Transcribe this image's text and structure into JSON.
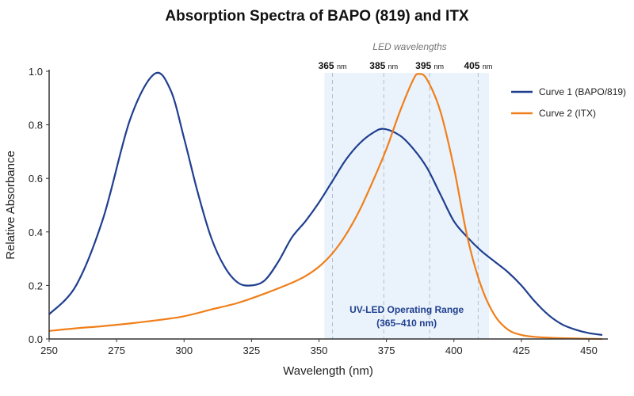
{
  "chart_data": {
    "type": "line",
    "title": "Absorption Spectra of BAPO (819) and ITX",
    "xlabel": "Wavelength (nm)",
    "ylabel": "Relative Absorbance",
    "xlim": [
      250,
      455
    ],
    "ylim": [
      0,
      1.0
    ],
    "xticks": [
      250,
      275,
      300,
      325,
      350,
      375,
      400,
      425,
      450
    ],
    "yticks": [
      0.0,
      0.2,
      0.4,
      0.6,
      0.8,
      1.0
    ],
    "grid": false,
    "legend": "top-right",
    "series": [
      {
        "name": "Curve 1 (BAPO/819)",
        "color": "#1f3f8f",
        "x": [
          250,
          260,
          270,
          280,
          289,
          295,
          300,
          305,
          310,
          315,
          320,
          325,
          330,
          335,
          340,
          345,
          350,
          355,
          360,
          365,
          370,
          374,
          380,
          385,
          390,
          395,
          400,
          405,
          410,
          415,
          420,
          425,
          430,
          435,
          440,
          445,
          450,
          455
        ],
        "y": [
          0.092,
          0.2,
          0.45,
          0.82,
          0.99,
          0.93,
          0.75,
          0.55,
          0.38,
          0.27,
          0.21,
          0.2,
          0.22,
          0.29,
          0.38,
          0.44,
          0.51,
          0.59,
          0.67,
          0.73,
          0.77,
          0.785,
          0.76,
          0.71,
          0.64,
          0.54,
          0.44,
          0.38,
          0.33,
          0.29,
          0.25,
          0.2,
          0.14,
          0.09,
          0.055,
          0.035,
          0.022,
          0.015
        ]
      },
      {
        "name": "Curve 2 (ITX)",
        "color": "#f07f1a",
        "x": [
          250,
          260,
          270,
          280,
          290,
          300,
          310,
          320,
          330,
          340,
          345,
          350,
          355,
          360,
          365,
          370,
          375,
          380,
          385,
          387,
          390,
          395,
          400,
          405,
          410,
          415,
          420,
          425,
          430,
          440,
          455
        ],
        "y": [
          0.03,
          0.04,
          0.048,
          0.058,
          0.07,
          0.085,
          0.11,
          0.135,
          0.17,
          0.21,
          0.235,
          0.27,
          0.32,
          0.39,
          0.48,
          0.59,
          0.71,
          0.85,
          0.97,
          0.99,
          0.97,
          0.85,
          0.64,
          0.38,
          0.2,
          0.09,
          0.035,
          0.015,
          0.008,
          0.003,
          0
        ]
      }
    ],
    "shaded_region": {
      "x": [
        352,
        413
      ],
      "color": "#eaf3fc",
      "label_lines": [
        "UV-LED Operating Range",
        "(365–410 nm)"
      ],
      "label_color": "#1f3f8f"
    },
    "annotation_header": "LED wavelengths",
    "led_markers": [
      {
        "x": 355,
        "value": "365",
        "unit": "nm"
      },
      {
        "x": 374,
        "value": "385",
        "unit": "nm"
      },
      {
        "x": 391,
        "value": "395",
        "unit": "nm"
      },
      {
        "x": 409,
        "value": "405",
        "unit": "nm"
      }
    ]
  }
}
